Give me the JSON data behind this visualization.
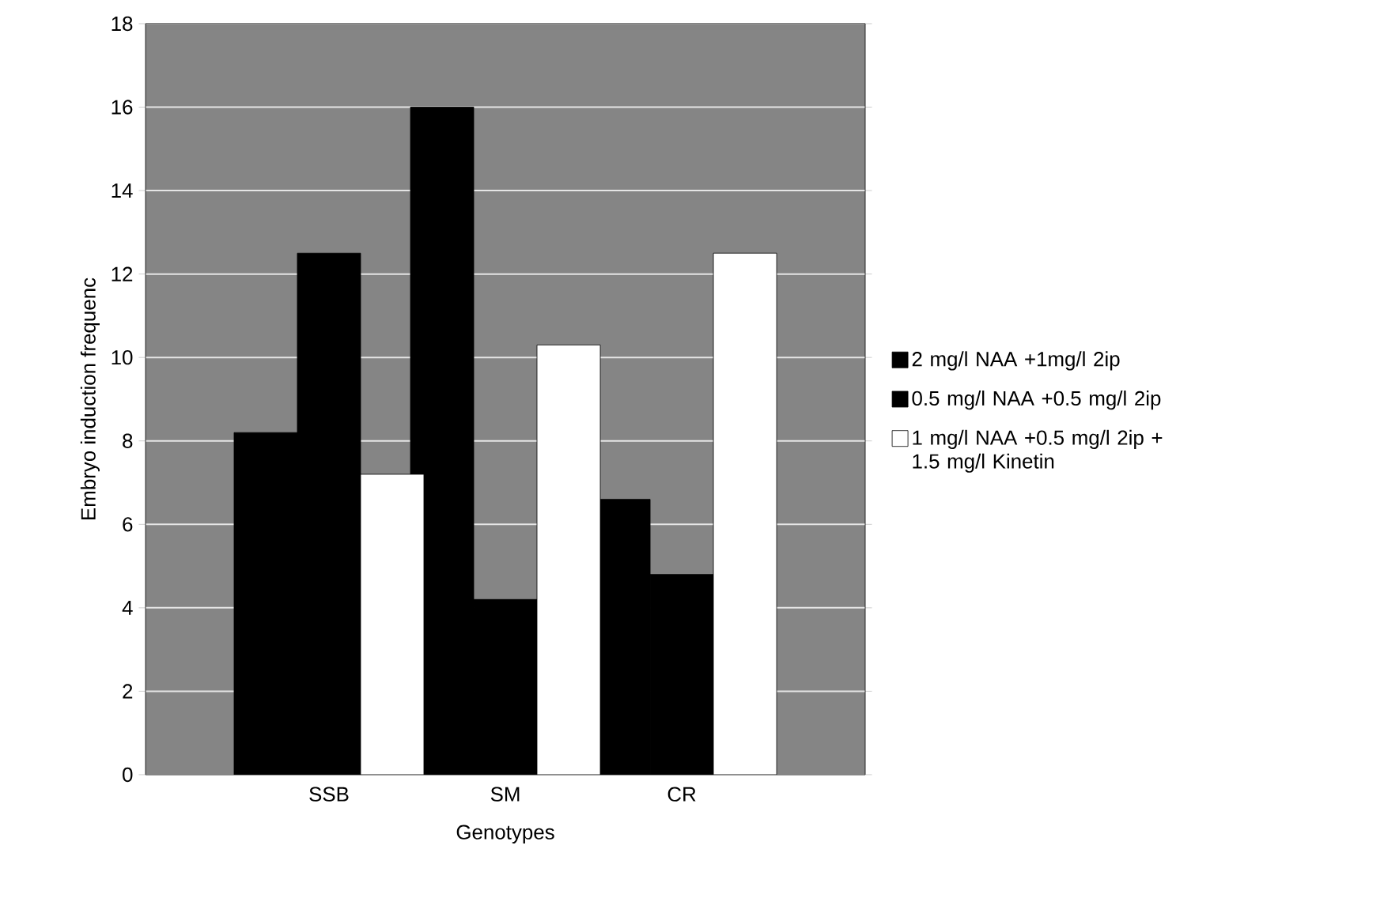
{
  "chart_data": {
    "type": "bar",
    "xlabel": "Genotypes",
    "ylabel": "Embryo induction frequenc",
    "categories": [
      "SSB",
      "SM",
      "CR"
    ],
    "series": [
      {
        "name": "2 mg/l NAA +1mg/l 2ip",
        "color": "#000000",
        "values": [
          8.2,
          16.0,
          6.6
        ]
      },
      {
        "name": "0.5 mg/l NAA +0.5 mg/l 2ip",
        "color": "#000000",
        "values": [
          12.5,
          4.2,
          4.8
        ]
      },
      {
        "name": "1 mg/l NAA +0.5 mg/l 2ip + 1.5 mg/l Kinetin",
        "color": "#ffffff",
        "values": [
          7.2,
          10.3,
          12.5
        ]
      }
    ],
    "ylim": [
      0,
      18
    ],
    "yticks": [
      0,
      2,
      4,
      6,
      8,
      10,
      12,
      14,
      16,
      18
    ],
    "grid": "y",
    "legend": "right"
  }
}
